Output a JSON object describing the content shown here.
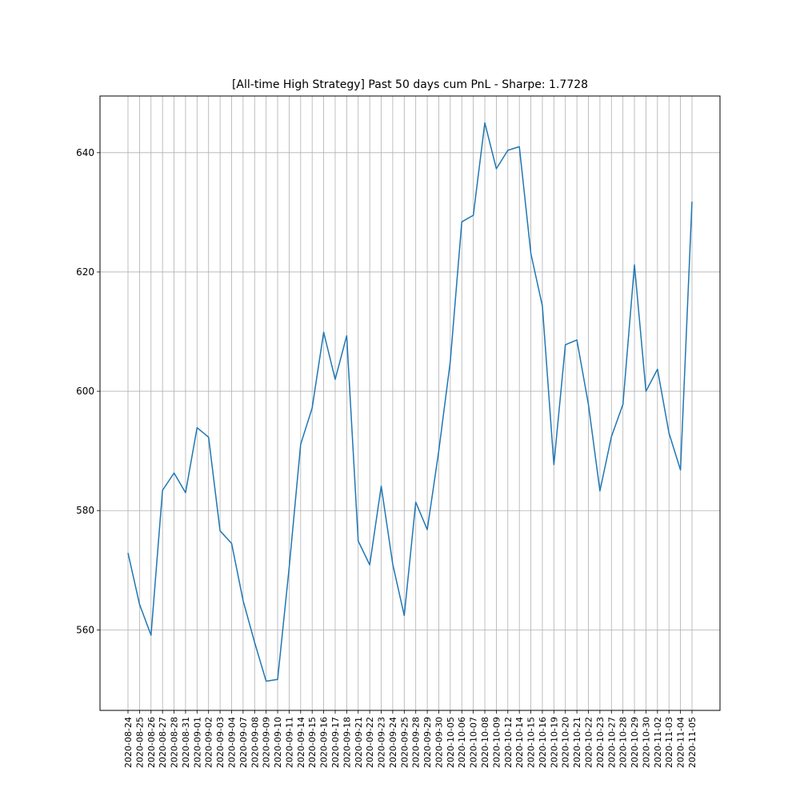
{
  "chart_data": {
    "type": "line",
    "title": "[All-time High Strategy] Past 50 days cum PnL - Sharpe: 1.7728",
    "xlabel": "",
    "ylabel": "",
    "ylim": [
      546.5,
      649.5
    ],
    "yticks": [
      560,
      580,
      600,
      620,
      640
    ],
    "grid": true,
    "line_color": "#1f77b4",
    "grid_color": "#b0b0b0",
    "x": [
      "2020-08-24",
      "2020-08-25",
      "2020-08-26",
      "2020-08-27",
      "2020-08-28",
      "2020-08-31",
      "2020-09-01",
      "2020-09-02",
      "2020-09-03",
      "2020-09-04",
      "2020-09-07",
      "2020-09-08",
      "2020-09-09",
      "2020-09-10",
      "2020-09-11",
      "2020-09-14",
      "2020-09-15",
      "2020-09-16",
      "2020-09-17",
      "2020-09-18",
      "2020-09-21",
      "2020-09-22",
      "2020-09-23",
      "2020-09-24",
      "2020-09-25",
      "2020-09-28",
      "2020-09-29",
      "2020-09-30",
      "2020-10-05",
      "2020-10-06",
      "2020-10-07",
      "2020-10-08",
      "2020-10-09",
      "2020-10-12",
      "2020-10-14",
      "2020-10-15",
      "2020-10-16",
      "2020-10-19",
      "2020-10-20",
      "2020-10-21",
      "2020-10-22",
      "2020-10-23",
      "2020-10-27",
      "2020-10-28",
      "2020-10-29",
      "2020-10-30",
      "2020-11-02",
      "2020-11-03",
      "2020-11-04",
      "2020-11-05"
    ],
    "series": [
      {
        "values": [
          572.9,
          564.3,
          559.1,
          583.4,
          586.3,
          583.0,
          593.9,
          592.3,
          576.6,
          574.5,
          564.9,
          557.9,
          551.4,
          551.7,
          570.4,
          591.1,
          597.2,
          609.9,
          602.0,
          609.3,
          574.9,
          570.9,
          584.1,
          571.0,
          562.4,
          581.4,
          576.8,
          590.0,
          605.0,
          628.4,
          629.5,
          645.0,
          637.3,
          640.4,
          641.0,
          623.1,
          614.3,
          587.7,
          607.8,
          608.6,
          597.8,
          583.3,
          592.4,
          597.8,
          621.2,
          600.0,
          603.7,
          593.0,
          586.8,
          631.8
        ]
      }
    ]
  }
}
